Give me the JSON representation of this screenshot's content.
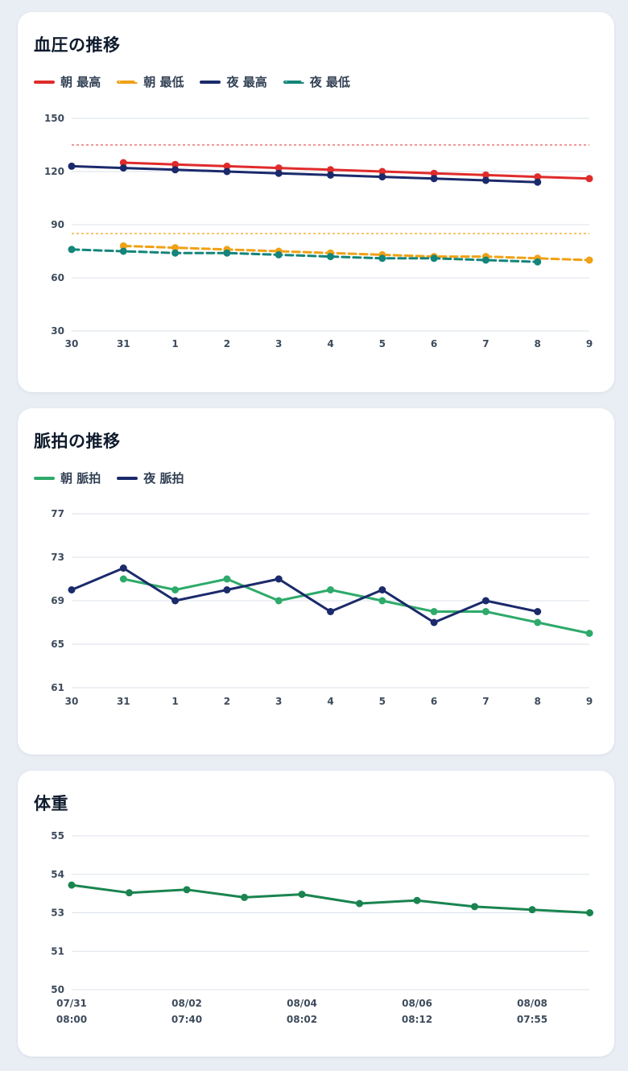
{
  "colors": {
    "am_systolic": "#e02b2b",
    "am_diastolic": "#f0a116",
    "pm_systolic": "#1b2a6b",
    "pm_diastolic": "#14857a",
    "am_pulse": "#2eaa6a",
    "pm_pulse": "#1b2a6b",
    "weight": "#1a8450",
    "grid": "#dbe2ea"
  },
  "chart_data": [
    {
      "id": "bp",
      "type": "line",
      "title": "血圧の推移",
      "categories": [
        "30",
        "31",
        "1",
        "2",
        "3",
        "4",
        "5",
        "6",
        "7",
        "8",
        "9"
      ],
      "yticks": [
        "150",
        "120",
        "90",
        "60",
        "30"
      ],
      "ylim": [
        30,
        150
      ],
      "legend_placement": "top-left",
      "grid": true,
      "reference_lines": [
        {
          "value": 135,
          "color": "#e65a5a"
        },
        {
          "value": 85,
          "color": "#f0a116"
        }
      ],
      "series": [
        {
          "name": "朝 最高",
          "color": "#e02b2b",
          "dashed": false,
          "values": [
            null,
            125,
            124,
            123,
            122,
            121,
            120,
            119,
            118,
            117,
            116
          ]
        },
        {
          "name": "朝 最低",
          "color": "#f0a116",
          "dashed": true,
          "values": [
            null,
            78,
            77,
            76,
            75,
            74,
            73,
            72,
            72,
            71,
            70
          ]
        },
        {
          "name": "夜 最高",
          "color": "#1b2a6b",
          "dashed": false,
          "values": [
            123,
            122,
            121,
            120,
            119,
            118,
            117,
            116,
            115,
            114,
            null
          ]
        },
        {
          "name": "夜 最低",
          "color": "#14857a",
          "dashed": true,
          "values": [
            76,
            75,
            74,
            74,
            73,
            72,
            71,
            71,
            70,
            69,
            null
          ]
        }
      ]
    },
    {
      "id": "pulse",
      "type": "line",
      "title": "脈拍の推移",
      "categories": [
        "30",
        "31",
        "1",
        "2",
        "3",
        "4",
        "5",
        "6",
        "7",
        "8",
        "9"
      ],
      "yticks": [
        "77",
        "73",
        "69",
        "65",
        "61"
      ],
      "ylim": [
        61,
        77
      ],
      "legend_placement": "top-left",
      "grid": true,
      "series": [
        {
          "name": "朝 脈拍",
          "color": "#2eaa6a",
          "dashed": false,
          "values": [
            null,
            71,
            70,
            71,
            69,
            70,
            69,
            68,
            68,
            67,
            66
          ]
        },
        {
          "name": "夜 脈拍",
          "color": "#1b2a6b",
          "dashed": false,
          "values": [
            70,
            72,
            69,
            70,
            71,
            68,
            70,
            67,
            69,
            68,
            null
          ]
        }
      ]
    },
    {
      "id": "weight",
      "type": "line",
      "title": "体重",
      "yticks": [
        "55",
        "54",
        "53",
        "51",
        "50"
      ],
      "ylim": [
        50,
        55
      ],
      "legend_placement": "none",
      "grid": true,
      "x_labels": [
        {
          "date": "07/31",
          "time": "08:00",
          "index": 0
        },
        {
          "date": "08/02",
          "time": "07:40",
          "index": 2
        },
        {
          "date": "08/04",
          "time": "08:02",
          "index": 4
        },
        {
          "date": "08/06",
          "time": "08:12",
          "index": 6
        },
        {
          "date": "08/08",
          "time": "07:55",
          "index": 8
        }
      ],
      "series": [
        {
          "name": "",
          "color": "#1a8450",
          "dashed": false,
          "values": [
            53.4,
            53.15,
            53.25,
            53.0,
            53.1,
            52.8,
            52.9,
            52.7,
            52.6,
            52.5
          ]
        }
      ]
    }
  ]
}
